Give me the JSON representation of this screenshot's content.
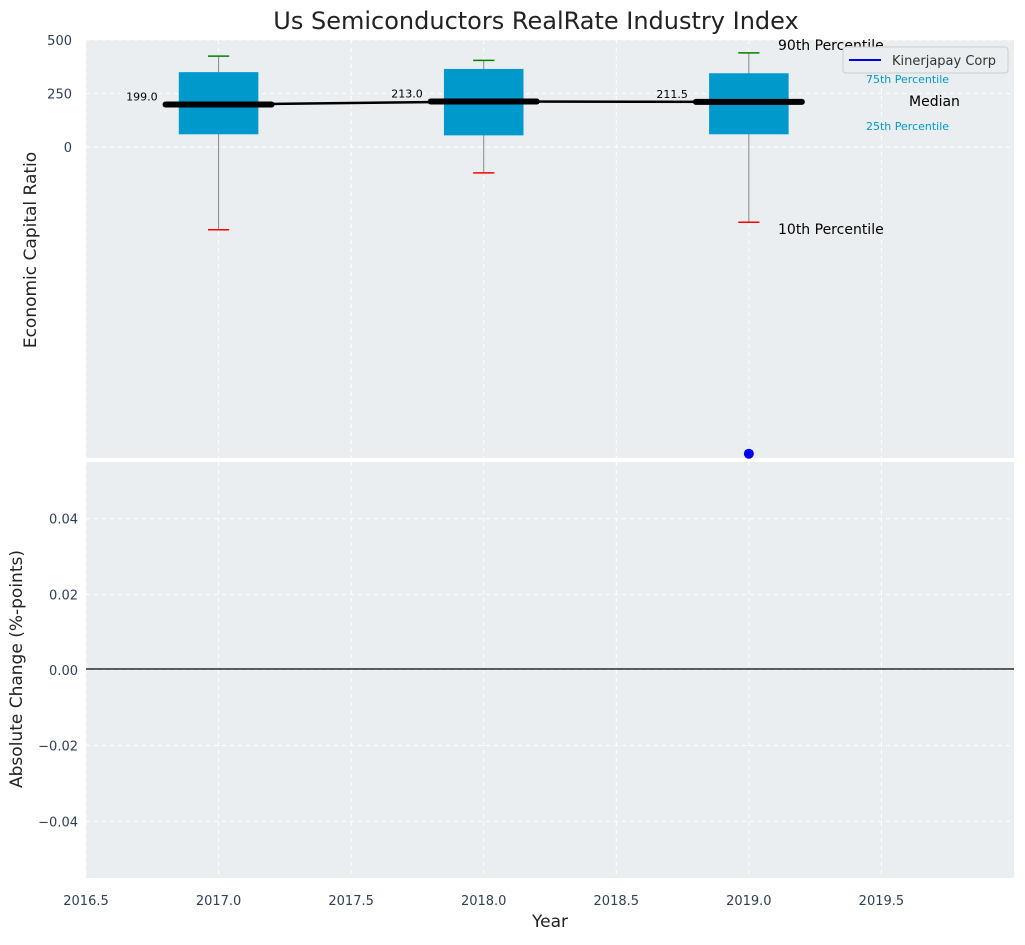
{
  "chart_data": {
    "type": "boxplot",
    "title": "Us Semiconductors RealRate Industry Index",
    "xlabel": "Year",
    "top_panel": {
      "ylabel": "Economic Capital Ratio",
      "yticks": [
        "0",
        "250",
        "500"
      ],
      "ylim": [
        -1450,
        500
      ],
      "boxes": [
        {
          "year": 2017,
          "p10": -385,
          "p25": 60,
          "median": 199.0,
          "p75": 350,
          "p90": 425
        },
        {
          "year": 2018,
          "p10": -120,
          "p25": 55,
          "median": 213.0,
          "p75": 365,
          "p90": 405
        },
        {
          "year": 2019,
          "p10": -350,
          "p25": 60,
          "median": 211.5,
          "p75": 345,
          "p90": 440
        }
      ],
      "median_labels": [
        "199.0",
        "213.0",
        "211.5"
      ],
      "company_points": [
        {
          "year": 2019,
          "value": -1430
        }
      ],
      "annotations": {
        "p90": "90th Percentile",
        "p75": "75th Percentile",
        "median": "Median",
        "p25": "25th Percentile",
        "p10": "10th Percentile"
      },
      "legend": {
        "label": "Kinerjapay Corp",
        "position": "top-right"
      }
    },
    "bottom_panel": {
      "ylabel": "Absolute Change (%-points)",
      "yticks": [
        "0.04",
        "0.02",
        "0.00",
        "−0.02",
        "−0.04"
      ],
      "ylim": [
        -0.055,
        0.055
      ]
    },
    "xticks": [
      "2016.5",
      "2017.0",
      "2017.5",
      "2018.0",
      "2018.5",
      "2019.0",
      "2019.5"
    ],
    "xlim": [
      2016.5,
      2020.0
    ],
    "colors": {
      "box": "#0099cc",
      "median": "#000000",
      "p90_whisker": "#008000",
      "p10_whisker": "#ff0000",
      "company": "#0000ee",
      "panel_bg": "#eaeef0",
      "grid": "#ffffff"
    }
  }
}
